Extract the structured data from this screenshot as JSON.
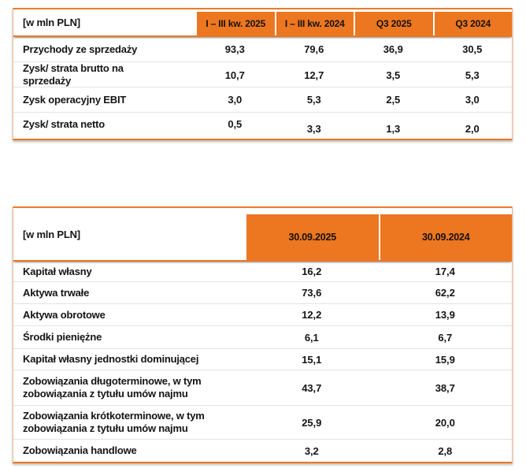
{
  "accent_color": "#ED7621",
  "table1": {
    "unit_label": "[w mln PLN]",
    "columns": [
      "I – III kw. 2025",
      "I – III kw. 2024",
      "Q3 2025",
      "Q3 2024"
    ],
    "rows": [
      {
        "label": "Przychody ze sprzedaży",
        "values": [
          "93,3",
          "79,6",
          "36,9",
          "30,5"
        ]
      },
      {
        "label": "Zysk/ strata brutto na sprzedaży",
        "values": [
          "10,7",
          "12,7",
          "3,5",
          "5,3"
        ]
      },
      {
        "label": "Zysk operacyjny EBIT",
        "values": [
          "3,0",
          "5,3",
          "2,5",
          "3,0"
        ]
      },
      {
        "label": "Zysk/ strata netto",
        "values": [
          "0,5",
          "3,3",
          "1,3",
          "2,0"
        ]
      }
    ]
  },
  "table2": {
    "unit_label": "[w mln PLN]",
    "columns": [
      "30.09.2025",
      "30.09.2024"
    ],
    "rows": [
      {
        "label": "Kapitał własny",
        "values": [
          "16,2",
          "17,4"
        ]
      },
      {
        "label": "Aktywa trwałe",
        "values": [
          "73,6",
          "62,2"
        ]
      },
      {
        "label": "Aktywa obrotowe",
        "values": [
          "12,2",
          "13,9"
        ]
      },
      {
        "label": "Środki pieniężne",
        "values": [
          "6,1",
          "6,7"
        ]
      },
      {
        "label": "Kapitał własny jednostki dominującej",
        "values": [
          "15,1",
          "15,9"
        ]
      },
      {
        "label": "Zobowiązania długoterminowe, w tym zobowiązania z tytułu umów najmu",
        "values": [
          "43,7",
          "38,7"
        ]
      },
      {
        "label": "Zobowiązania krótkoterminowe, w tym zobowiązania z tytułu umów najmu",
        "values": [
          "25,9",
          "20,0"
        ]
      },
      {
        "label": "Zobowiązania handlowe",
        "values": [
          "3,2",
          "2,8"
        ]
      }
    ]
  }
}
